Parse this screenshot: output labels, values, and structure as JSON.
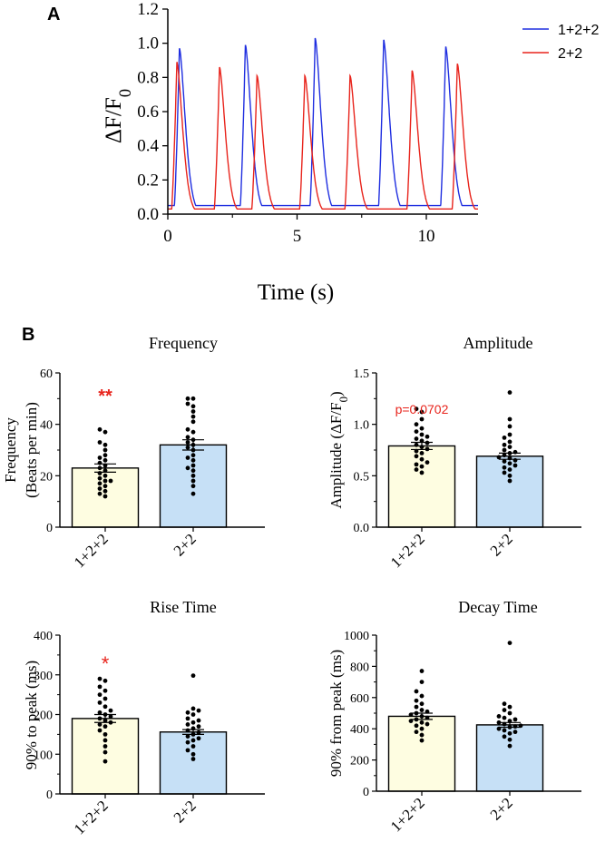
{
  "colors": {
    "series_a": "#1f2ee0",
    "series_b": "#e8241c",
    "bar_a": "#fefde1",
    "bar_b": "#c6e0f6",
    "significance": "#e8241c"
  },
  "panel_labels": {
    "a": "A",
    "b": "B"
  },
  "chart_data": [
    {
      "id": "trace",
      "type": "line",
      "title": "",
      "xlabel": "Time (s)",
      "ylabel_main": "ΔF/F",
      "ylabel_sub": "0",
      "xlim": [
        0,
        12
      ],
      "ylim": [
        0,
        1.2
      ],
      "x_ticks": [
        "0",
        "5",
        "10"
      ],
      "x_tick_values": [
        0,
        5,
        10
      ],
      "y_ticks": [
        "0.0",
        "0.2",
        "0.4",
        "0.6",
        "0.8",
        "1.0",
        "1.2"
      ],
      "y_tick_values": [
        0,
        0.2,
        0.4,
        0.6,
        0.8,
        1.0,
        1.2
      ],
      "legend": [
        "1+2+2",
        "2+2"
      ],
      "series": [
        {
          "name": "1+2+2",
          "baseline": 0.05,
          "peaks": [
            [
              0.45,
              0.97
            ],
            [
              3.0,
              0.99
            ],
            [
              5.7,
              1.03
            ],
            [
              8.35,
              1.02
            ],
            [
              10.75,
              0.98
            ]
          ]
        },
        {
          "name": "2+2",
          "baseline": 0.03,
          "peaks": [
            [
              0.35,
              0.89
            ],
            [
              2.0,
              0.86
            ],
            [
              3.45,
              0.81
            ],
            [
              5.3,
              0.81
            ],
            [
              7.05,
              0.81
            ],
            [
              9.45,
              0.84
            ],
            [
              11.2,
              0.88
            ]
          ]
        }
      ]
    },
    {
      "id": "frequency",
      "type": "bar",
      "title": "Frequency",
      "ylabel": [
        "Frequency",
        "(Beats per min)"
      ],
      "categories": [
        "1+2+2",
        "2+2"
      ],
      "values": [
        23,
        32
      ],
      "sem": [
        1.6,
        2.0
      ],
      "ylim": [
        0,
        60
      ],
      "y_ticks": [
        "0",
        "20",
        "40",
        "60"
      ],
      "y_tick_values": [
        0,
        20,
        40,
        60
      ],
      "annotation": "**",
      "points": [
        [
          12,
          13,
          14,
          15,
          16,
          17,
          18,
          18,
          19,
          20,
          21,
          22,
          23,
          24,
          25,
          26,
          27,
          28,
          30,
          32,
          33,
          37,
          38
        ],
        [
          13,
          16,
          18,
          20,
          22,
          23,
          24,
          26,
          27,
          28,
          30,
          31,
          32,
          33,
          34,
          35,
          37,
          38,
          41,
          43,
          45,
          47,
          48,
          50,
          50
        ]
      ]
    },
    {
      "id": "amplitude",
      "type": "bar",
      "title": "Amplitude",
      "ylabel_main": "Amplitude (ΔF/F",
      "ylabel_sub": "0",
      "ylabel_end": ")",
      "categories": [
        "1+2+2",
        "2+2"
      ],
      "values": [
        0.79,
        0.69
      ],
      "sem": [
        0.035,
        0.03
      ],
      "ylim": [
        0,
        1.5
      ],
      "y_ticks": [
        "0.0",
        "0.5",
        "1.0",
        "1.5"
      ],
      "y_tick_values": [
        0,
        0.5,
        1.0,
        1.5
      ],
      "annotation": "p=0.0702",
      "points": [
        [
          0.53,
          0.56,
          0.59,
          0.61,
          0.63,
          0.66,
          0.69,
          0.72,
          0.74,
          0.76,
          0.78,
          0.8,
          0.82,
          0.84,
          0.86,
          0.88,
          0.9,
          0.93,
          0.96,
          1.0,
          1.05,
          1.12,
          1.15
        ],
        [
          0.45,
          0.5,
          0.53,
          0.56,
          0.58,
          0.6,
          0.62,
          0.64,
          0.65,
          0.67,
          0.68,
          0.7,
          0.72,
          0.73,
          0.75,
          0.78,
          0.8,
          0.83,
          0.87,
          0.9,
          0.98,
          1.05,
          1.31
        ]
      ]
    },
    {
      "id": "rise",
      "type": "bar",
      "title": "Rise Time",
      "ylabel": [
        "90% to peak (ms)"
      ],
      "categories": [
        "1+2+2",
        "2+2"
      ],
      "values": [
        190,
        156
      ],
      "sem": [
        10,
        6
      ],
      "ylim": [
        0,
        400
      ],
      "y_ticks": [
        "0",
        "100",
        "200",
        "300",
        "400"
      ],
      "y_tick_values": [
        0,
        100,
        200,
        300,
        400
      ],
      "annotation": "*",
      "points": [
        [
          82,
          105,
          120,
          135,
          150,
          160,
          170,
          175,
          180,
          185,
          190,
          195,
          200,
          205,
          210,
          220,
          230,
          240,
          250,
          260,
          270,
          285,
          290
        ],
        [
          88,
          100,
          110,
          120,
          130,
          135,
          140,
          145,
          150,
          155,
          160,
          165,
          170,
          175,
          180,
          185,
          190,
          200,
          205,
          210,
          215,
          298
        ]
      ]
    },
    {
      "id": "decay",
      "type": "bar",
      "title": "Decay Time",
      "ylabel": [
        "90% from peak (ms)"
      ],
      "categories": [
        "1+2+2",
        "2+2"
      ],
      "values": [
        480,
        425
      ],
      "sem": [
        20,
        15
      ],
      "ylim": [
        0,
        1000
      ],
      "y_ticks": [
        "0",
        "200",
        "400",
        "600",
        "800",
        "1000"
      ],
      "y_tick_values": [
        0,
        200,
        400,
        600,
        800,
        1000
      ],
      "annotation": "",
      "points": [
        [
          325,
          360,
          380,
          400,
          420,
          430,
          440,
          450,
          460,
          470,
          480,
          490,
          500,
          510,
          520,
          540,
          560,
          580,
          610,
          640,
          700,
          770
        ],
        [
          290,
          330,
          350,
          370,
          380,
          390,
          400,
          410,
          415,
          420,
          430,
          440,
          450,
          460,
          470,
          480,
          500,
          520,
          540,
          560,
          950
        ]
      ]
    }
  ]
}
